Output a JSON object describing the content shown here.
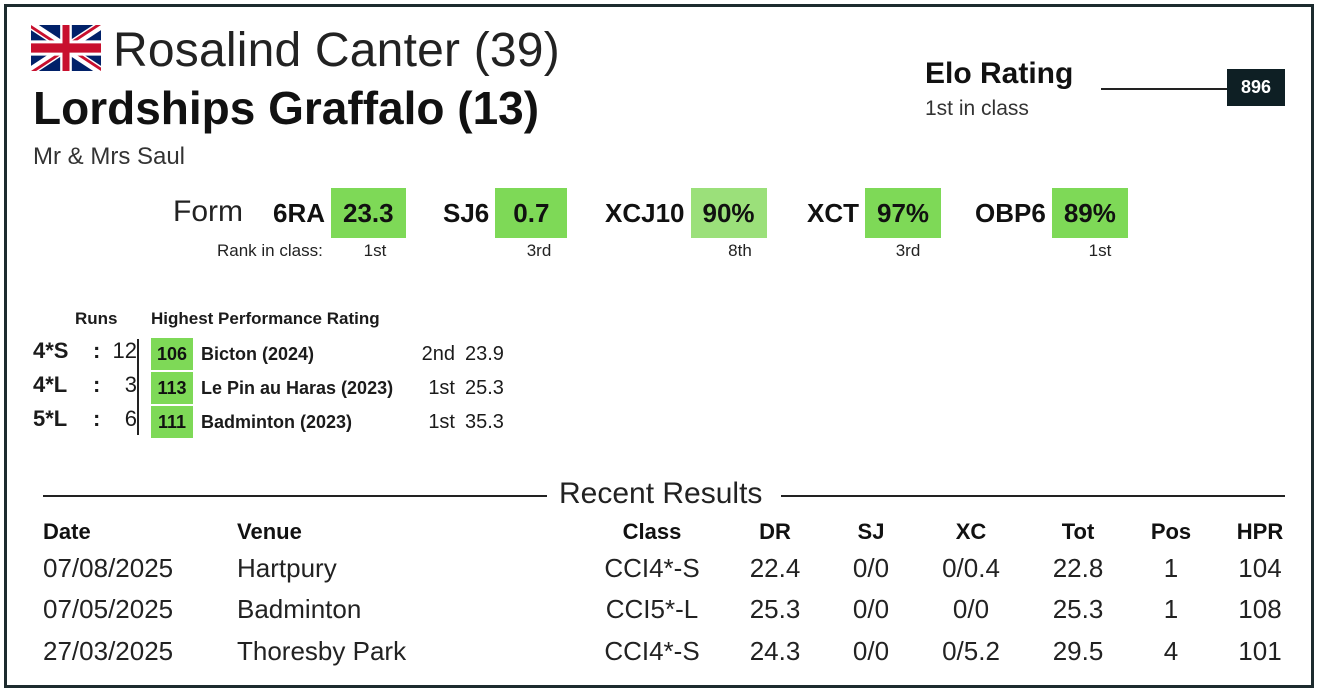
{
  "header": {
    "rider": "Rosalind Canter (39)",
    "horse": "Lordships Graffalo (13)",
    "owner": "Mr & Mrs Saul",
    "flag_icon": "uk-flag-icon"
  },
  "elo": {
    "label": "Elo Rating",
    "sub": "1st in class",
    "value": "896"
  },
  "form": {
    "label": "Form",
    "rank_label": "Rank in class:",
    "metrics": [
      {
        "name": "6RA",
        "value": "23.3",
        "rank": "1st"
      },
      {
        "name": "SJ6",
        "value": "0.7",
        "rank": "3rd"
      },
      {
        "name": "XCJ10",
        "value": "90%",
        "rank": "8th"
      },
      {
        "name": "XCT",
        "value": "97%",
        "rank": "3rd"
      },
      {
        "name": "OBP6",
        "value": "89%",
        "rank": "1st"
      }
    ]
  },
  "runs": {
    "runs_header": "Runs",
    "hpr_header": "Highest Performance Rating",
    "rows": [
      {
        "level": "4*S",
        "colon": ":",
        "count": "12",
        "hpr": "106",
        "event": "Bicton  (2024)",
        "pos": "2nd",
        "score": "23.9"
      },
      {
        "level": "4*L",
        "colon": ":",
        "count": "3",
        "hpr": "113",
        "event": "Le Pin au Haras  (2023)",
        "pos": "1st",
        "score": "25.3"
      },
      {
        "level": "5*L",
        "colon": ":",
        "count": "6",
        "hpr": "111",
        "event": "Badminton  (2023)",
        "pos": "1st",
        "score": "35.3"
      }
    ]
  },
  "recent": {
    "title": "Recent Results",
    "headers": {
      "date": "Date",
      "venue": "Venue",
      "class": "Class",
      "dr": "DR",
      "sj": "SJ",
      "xc": "XC",
      "tot": "Tot",
      "pos": "Pos",
      "hpr": "HPR"
    },
    "rows": [
      {
        "date": "07/08/2025",
        "venue": "Hartpury",
        "class": "CCI4*-S",
        "dr": "22.4",
        "sj": "0/0",
        "xc": "0/0.4",
        "tot": "22.8",
        "pos": "1",
        "hpr": "104"
      },
      {
        "date": "07/05/2025",
        "venue": "Badminton",
        "class": "CCI5*-L",
        "dr": "25.3",
        "sj": "0/0",
        "xc": "0/0",
        "tot": "25.3",
        "pos": "1",
        "hpr": "108"
      },
      {
        "date": "27/03/2025",
        "venue": "Thoresby Park",
        "class": "CCI4*-S",
        "dr": "24.3",
        "sj": "0/0",
        "xc": "0/5.2",
        "tot": "29.5",
        "pos": "4",
        "hpr": "101"
      }
    ]
  },
  "colors": {
    "green": "#7ed957",
    "light_green": "#9be07a",
    "dark": "#0e1f24"
  }
}
